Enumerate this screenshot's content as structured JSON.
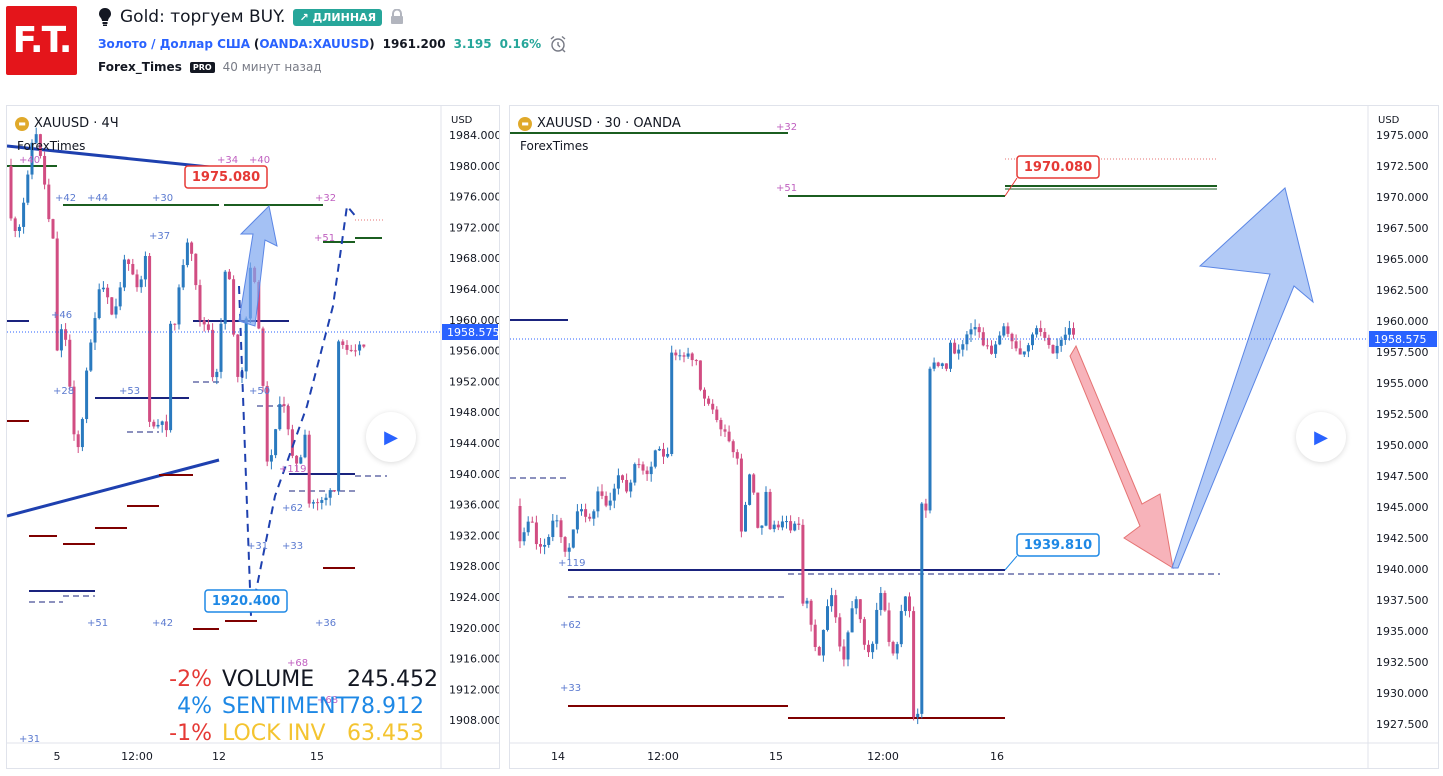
{
  "header": {
    "title": "Gold: торгуем BUY.",
    "badge": "↗ ДЛИННАЯ",
    "symbol_link": "Золото / Доллар США",
    "symbol_code_open": "(",
    "symbol_code": "OANDA:XAUUSD",
    "symbol_code_close": ")",
    "price": "1961.200",
    "change": "3.195",
    "change_pct": "0.16%",
    "author": "Forex_Times",
    "pro_badge": "PRO",
    "time_ago": "40 минут назад",
    "logo_text": "F.T.",
    "colors": {
      "logo": "#e4151b",
      "badge": "#26a69a",
      "link": "#2962ff"
    }
  },
  "left_chart": {
    "legend": "XAUUSD · 4Ч",
    "sublegend": "ForexTimes",
    "axis_currency": "USD",
    "y_ticks": [
      "1984.000",
      "1980.000",
      "1976.000",
      "1972.000",
      "1968.000",
      "1964.000",
      "1960.000",
      "1956.000",
      "1952.000",
      "1948.000",
      "1944.000",
      "1940.000",
      "1936.000",
      "1932.000",
      "1928.000",
      "1924.000",
      "1920.000",
      "1916.000",
      "1912.000",
      "1908.000"
    ],
    "x_ticks": [
      "5",
      "12:00",
      "12",
      "15"
    ],
    "last_price": "1958.575",
    "callout_top": "1975.080",
    "callout_bottom": "1920.400",
    "markers": [
      "+40",
      "+42",
      "+44",
      "+30",
      "+34",
      "+40",
      "+32",
      "+37",
      "+51",
      "+46",
      "+53",
      "+50",
      "+28",
      "+119",
      "+62",
      "+31",
      "+33",
      "+51",
      "+42",
      "+36",
      "+68",
      "+68",
      "+31"
    ],
    "stats": [
      {
        "pct": "-2%",
        "label": "VOLUME",
        "value": "245.452",
        "color": "#e53935",
        "label_color": "#131722"
      },
      {
        "pct": "4%",
        "label": "SENTIMENT",
        "value": "78.912",
        "color": "#1e88e5",
        "label_color": "#1e88e5"
      },
      {
        "pct": "-1%",
        "label": "LOCK INV",
        "value": "63.453",
        "color": "#e53935",
        "label_color": "#f4c430"
      }
    ]
  },
  "right_chart": {
    "legend": "XAUUSD · 30 · OANDA",
    "sublegend": "ForexTimes",
    "axis_currency": "USD",
    "y_ticks": [
      "1975.000",
      "1972.500",
      "1970.000",
      "1967.500",
      "1965.000",
      "1962.500",
      "1960.000",
      "1957.500",
      "1955.000",
      "1952.500",
      "1950.000",
      "1947.500",
      "1945.000",
      "1942.500",
      "1940.000",
      "1937.500",
      "1935.000",
      "1932.500",
      "1930.000",
      "1927.500"
    ],
    "x_ticks": [
      "14",
      "12:00",
      "15",
      "12:00",
      "16"
    ],
    "last_price": "1958.575",
    "callout_top": "1970.080",
    "callout_bottom": "1939.810",
    "markers": [
      "+32",
      "+51",
      "+119",
      "+62",
      "+33"
    ]
  },
  "icons": [
    "bulb-icon",
    "lock-icon",
    "alarm-icon",
    "play-icon",
    "gold-symbol-icon"
  ]
}
